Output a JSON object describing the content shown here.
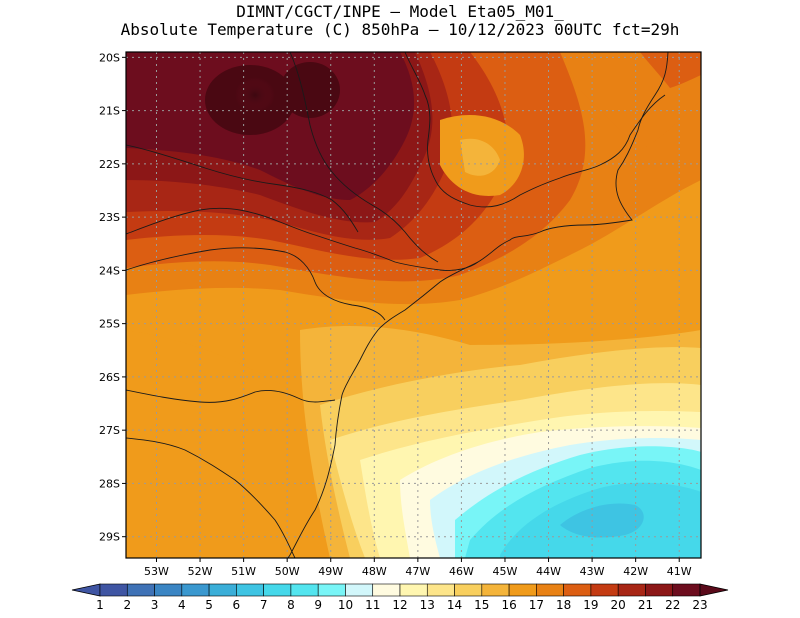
{
  "title": {
    "line1": "DIMNT/CGCT/INPE –  Model Eta05_M01_",
    "line2": "Absolute Temperature (C) 850hPa –  10/12/2023 00UTC fct=29h"
  },
  "map": {
    "lon_range": [
      -53.7,
      -40.5
    ],
    "lat_range": [
      -29.4,
      -19.9
    ],
    "lat_labels": [
      "20S",
      "21S",
      "22S",
      "23S",
      "24S",
      "25S",
      "26S",
      "27S",
      "28S",
      "29S"
    ],
    "lon_labels": [
      "53W",
      "52W",
      "51W",
      "50W",
      "49W",
      "48W",
      "47W",
      "46W",
      "45W",
      "44W",
      "43W",
      "42W",
      "41W"
    ],
    "grid": "dotted"
  },
  "colorbar": {
    "labels": [
      "1",
      "2",
      "3",
      "4",
      "5",
      "6",
      "7",
      "8",
      "9",
      "10",
      "11",
      "12",
      "13",
      "14",
      "15",
      "16",
      "17",
      "18",
      "19",
      "20",
      "21",
      "22",
      "23"
    ],
    "colors": [
      "#3f55a3",
      "#3f55a3",
      "#3f72b6",
      "#3a85c3",
      "#3a98cf",
      "#3aaed8",
      "#3ec4e3",
      "#45d8ea",
      "#53e5ef",
      "#78f5f7",
      "#d2f7fb",
      "#fffbe0",
      "#fff6b0",
      "#fde58a",
      "#f8cf5e",
      "#f4b43a",
      "#f09b1b",
      "#e88114",
      "#dc5e12",
      "#c43b12",
      "#a82615",
      "#8c1717",
      "#6d0d1e",
      "#5a0a1a"
    ]
  }
}
